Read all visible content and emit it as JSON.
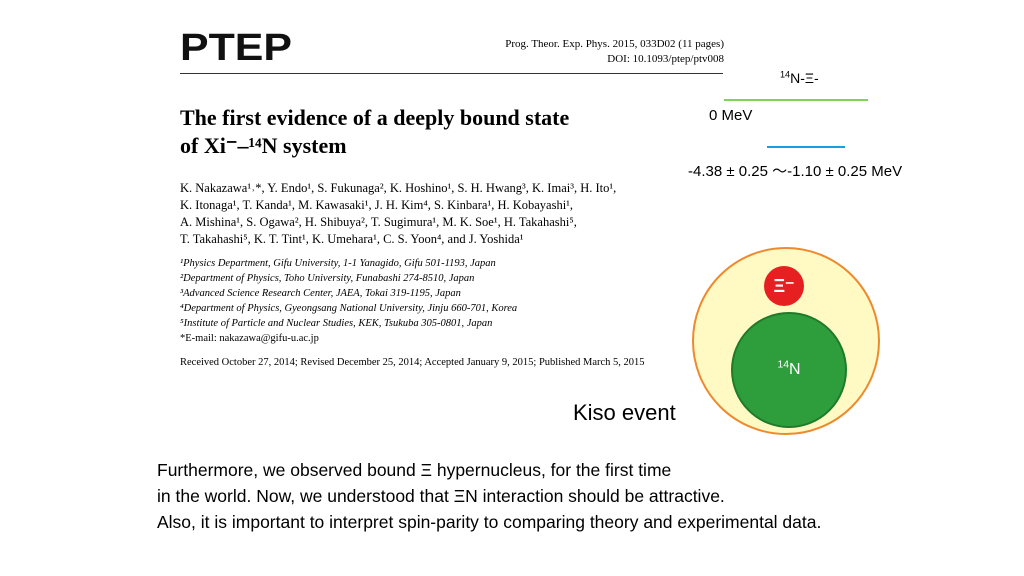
{
  "paper": {
    "logo_text": "PTEP",
    "journal_line": "Prog. Theor. Exp. Phys. 2015, 033D02 (11 pages)",
    "doi_line": "DOI: 10.1093/ptep/ptv008",
    "title_line1": "The first evidence of a deeply bound state",
    "title_line2": "of Xi⁻–¹⁴N system",
    "authors": [
      "K. Nakazawa¹˒*, Y. Endo¹, S. Fukunaga², K. Hoshino¹, S. H. Hwang³, K. Imai³, H. Ito¹,",
      "K. Itonaga¹, T. Kanda¹, M. Kawasaki¹, J. H. Kim⁴, S. Kinbara¹, H. Kobayashi¹,",
      "A. Mishina¹, S. Ogawa², H. Shibuya², T. Sugimura¹, M. K. Soe¹, H. Takahashi⁵,",
      "T. Takahashi⁵, K. T. Tint¹, K. Umehara¹, C. S. Yoon⁴, and J. Yoshida¹"
    ],
    "affiliations": [
      "¹Physics Department, Gifu University, 1-1 Yanagido, Gifu 501-1193, Japan",
      "²Department of Physics, Toho University, Funabashi 274-8510, Japan",
      "³Advanced Science Research Center, JAEA, Tokai 319-1195, Japan",
      "⁴Department of Physics, Gyeongsang National University, Jinju 660-701, Korea",
      "⁵Institute of Particle and Nuclear Studies, KEK, Tsukuba 305-0801, Japan"
    ],
    "email": "*E-mail: nakazawa@gifu-u.ac.jp",
    "received": "Received October 27, 2014; Revised December 25, 2014; Accepted January 9, 2015; Published March 5, 2015"
  },
  "diagram": {
    "system_label_mass": "14",
    "system_label_rest": "N-Ξ-",
    "zero_level": "0 MeV",
    "binding_energy": "-4.38 ± 0.25 ～-1.10 ± 0.25 MeV",
    "xi_label": "Ξ⁻",
    "nucleus_mass": "14",
    "nucleus_symbol": "N",
    "event_label": "Kiso event",
    "colors": {
      "upper_level": "#7fd45a",
      "bound_level": "#1f9be0",
      "outer_ring": "#ee8a2e",
      "outer_fill": "#fff9c4",
      "xi": "#e62020",
      "nucleus": "#2e9e3c"
    }
  },
  "summary": [
    "Furthermore, we observed bound Ξ hypernucleus, for the first time",
    "in the world. Now, we understood that ΞN interaction should be attractive.",
    "Also, it is important to interpret  spin-parity to comparing theory and experimental data."
  ]
}
